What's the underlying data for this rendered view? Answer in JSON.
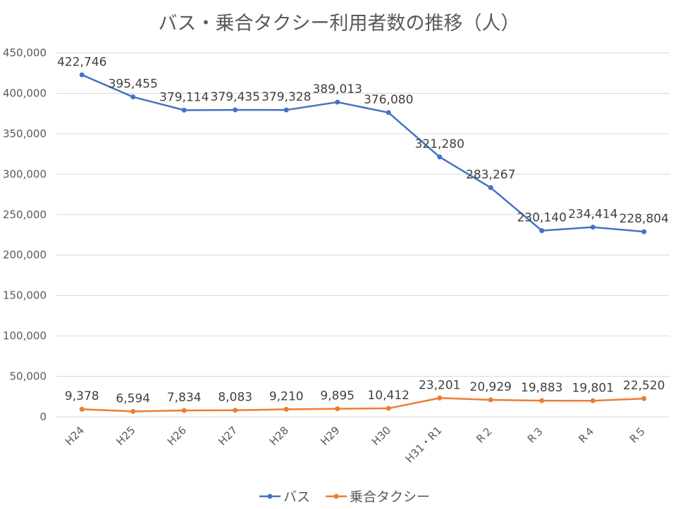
{
  "chart_data": {
    "type": "line",
    "title": "バス・乗合タクシー利用者数の推移（人）",
    "categories": [
      "H24",
      "H25",
      "H26",
      "H27",
      "H28",
      "H29",
      "H30",
      "H31・R1",
      "R２",
      "R３",
      "R４",
      "R５"
    ],
    "series": [
      {
        "name": "バス",
        "color": "#4472c4",
        "values": [
          422746,
          395455,
          379114,
          379435,
          379328,
          389013,
          376080,
          321280,
          283267,
          230140,
          234414,
          228804
        ],
        "labels": [
          "422,746",
          "395,455",
          "379,114",
          "379,435",
          "379,328",
          "389,013",
          "376,080",
          "321,280",
          "283,267",
          "230,140",
          "234,414",
          "228,804"
        ]
      },
      {
        "name": "乗合タクシー",
        "color": "#ed7d31",
        "values": [
          9378,
          6594,
          7834,
          8083,
          9210,
          9895,
          10412,
          23201,
          20929,
          19883,
          19801,
          22520
        ],
        "labels": [
          "9,378",
          "6,594",
          "7,834",
          "8,083",
          "9,210",
          "9,895",
          "10,412",
          "23,201",
          "20,929",
          "19,883",
          "19,801",
          "22,520"
        ]
      }
    ],
    "ylim": [
      0,
      450000
    ],
    "yticks": [
      "0",
      "50,000",
      "100,000",
      "150,000",
      "200,000",
      "250,000",
      "300,000",
      "350,000",
      "400,000",
      "450,000"
    ],
    "grid": true,
    "legend": "bottom"
  }
}
